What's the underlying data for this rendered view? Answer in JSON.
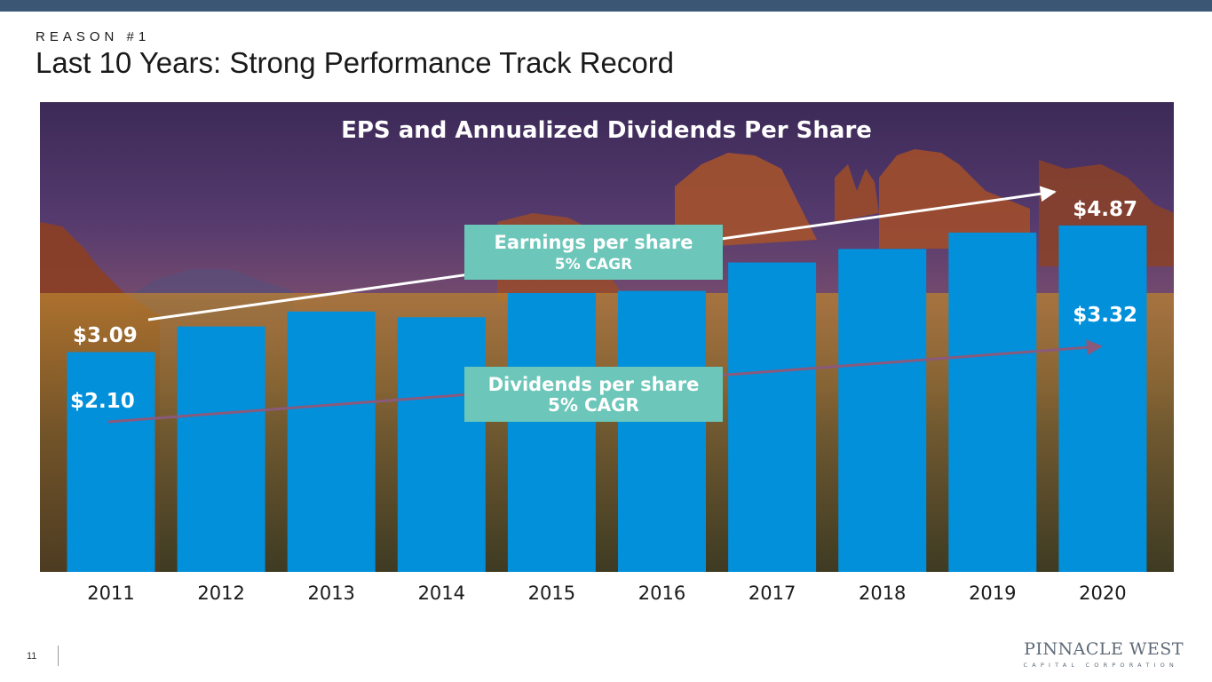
{
  "header": {
    "eyebrow": "REASON #1",
    "title": "Last 10 Years: Strong Performance Track Record"
  },
  "footer": {
    "page_number": "11",
    "logo_main": "PINNACLE WEST",
    "logo_sub": "CAPITAL CORPORATION"
  },
  "colors": {
    "bar": "#0290db",
    "eps_line": "#ffffff",
    "div_line": "#8a5a7c",
    "callout": "#6cc6b9",
    "topbar": "#3b5575"
  },
  "chart_data": {
    "type": "bar",
    "title": "EPS and Annualized Dividends Per Share",
    "categories": [
      "2011",
      "2012",
      "2013",
      "2014",
      "2015",
      "2016",
      "2017",
      "2018",
      "2019",
      "2020"
    ],
    "series": [
      {
        "values": [
          3.09,
          3.45,
          3.66,
          3.58,
          3.92,
          3.95,
          4.35,
          4.54,
          4.77,
          4.87
        ]
      }
    ],
    "trend_lines": [
      {
        "name": "Earnings per share",
        "start_value": 3.09,
        "end_value": 4.87
      },
      {
        "name": "Dividends per share",
        "start_value": 2.1,
        "end_value": 3.32
      }
    ],
    "data_labels": {
      "eps_start": "$3.09",
      "eps_end": "$4.87",
      "div_start": "$2.10",
      "div_end": "$3.32"
    },
    "callouts": {
      "eps": {
        "line1": "Earnings per share",
        "line2": "5% CAGR"
      },
      "div": {
        "line1": "Dividends per share",
        "line2": "5% CAGR"
      }
    },
    "background": "desert canyon photo",
    "grid": false
  }
}
